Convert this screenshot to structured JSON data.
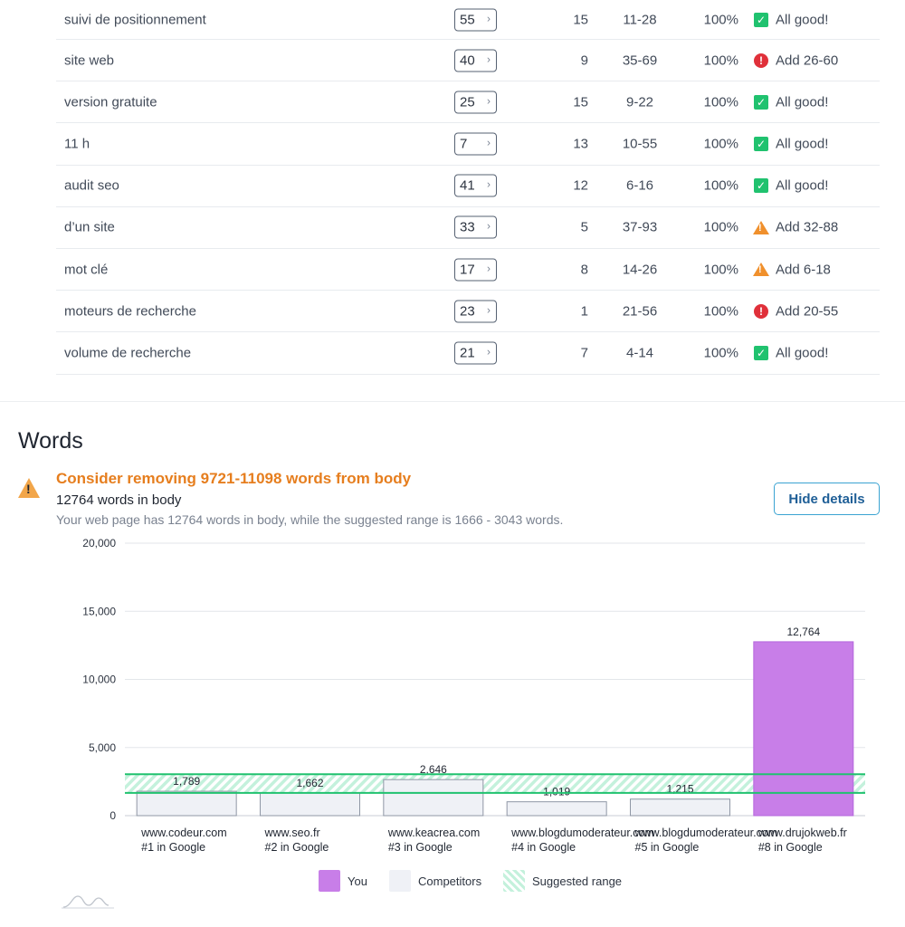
{
  "keywords": [
    {
      "name": "suivi de positionnement",
      "count": "55",
      "competitors": "15",
      "range": "11-28",
      "pct": "100%",
      "status": "ok",
      "status_text": "All good!"
    },
    {
      "name": "site web",
      "count": "40",
      "competitors": "9",
      "range": "35-69",
      "pct": "100%",
      "status": "error",
      "status_text": "Add 26-60"
    },
    {
      "name": "version gratuite",
      "count": "25",
      "competitors": "15",
      "range": "9-22",
      "pct": "100%",
      "status": "ok",
      "status_text": "All good!"
    },
    {
      "name": "11 h",
      "count": "7",
      "competitors": "13",
      "range": "10-55",
      "pct": "100%",
      "status": "ok",
      "status_text": "All good!"
    },
    {
      "name": "audit seo",
      "count": "41",
      "competitors": "12",
      "range": "6-16",
      "pct": "100%",
      "status": "ok",
      "status_text": "All good!"
    },
    {
      "name": "d’un site",
      "count": "33",
      "competitors": "5",
      "range": "37-93",
      "pct": "100%",
      "status": "warning",
      "status_text": "Add 32-88"
    },
    {
      "name": "mot clé",
      "count": "17",
      "competitors": "8",
      "range": "14-26",
      "pct": "100%",
      "status": "warning",
      "status_text": "Add 6-18"
    },
    {
      "name": "moteurs de recherche",
      "count": "23",
      "competitors": "1",
      "range": "21-56",
      "pct": "100%",
      "status": "error",
      "status_text": "Add 20-55"
    },
    {
      "name": "volume de recherche",
      "count": "21",
      "competitors": "7",
      "range": "4-14",
      "pct": "100%",
      "status": "ok",
      "status_text": "All good!"
    }
  ],
  "words": {
    "title": "Words",
    "headline": "Consider removing 9721-11098 words from body",
    "count_text": "12764 words in body",
    "description": "Your web page has 12764 words in body, while the suggested range is 1666 - 3043 words.",
    "hide_details_label": "Hide details"
  },
  "legend": {
    "you": "You",
    "competitors": "Competitors",
    "suggested": "Suggested range"
  },
  "colors": {
    "you": "#c87ee8",
    "competitor": "#eff1f6",
    "range_line": "#20c26f",
    "warning": "#e67e1e",
    "ok": "#20c26f",
    "error": "#e0303a"
  },
  "chart_data": {
    "type": "bar",
    "title": "",
    "xlabel": "",
    "ylabel": "",
    "ylim": [
      0,
      20000
    ],
    "yticks": [
      "0",
      "5,000",
      "10,000",
      "15,000",
      "20,000"
    ],
    "grid": true,
    "legend_position": "bottom",
    "suggested_range": [
      1666,
      3043
    ],
    "categories": [
      {
        "site": "www.codeur.com",
        "rank": "#1 in Google"
      },
      {
        "site": "www.seo.fr",
        "rank": "#2 in Google"
      },
      {
        "site": "www.keacrea.com",
        "rank": "#3 in Google"
      },
      {
        "site": "www.blogdumoderateur.com",
        "rank": "#4 in Google"
      },
      {
        "site": "www.blogdumoderateur.com",
        "rank": "#5 in Google"
      },
      {
        "site": "www.drujokweb.fr",
        "rank": "#8 in Google"
      }
    ],
    "values": [
      1789,
      1662,
      2646,
      1019,
      1215,
      12764
    ],
    "value_labels": [
      "1,789",
      "1,662",
      "2,646",
      "1,019",
      "1,215",
      "12,764"
    ],
    "is_you": [
      false,
      false,
      false,
      false,
      false,
      true
    ]
  }
}
